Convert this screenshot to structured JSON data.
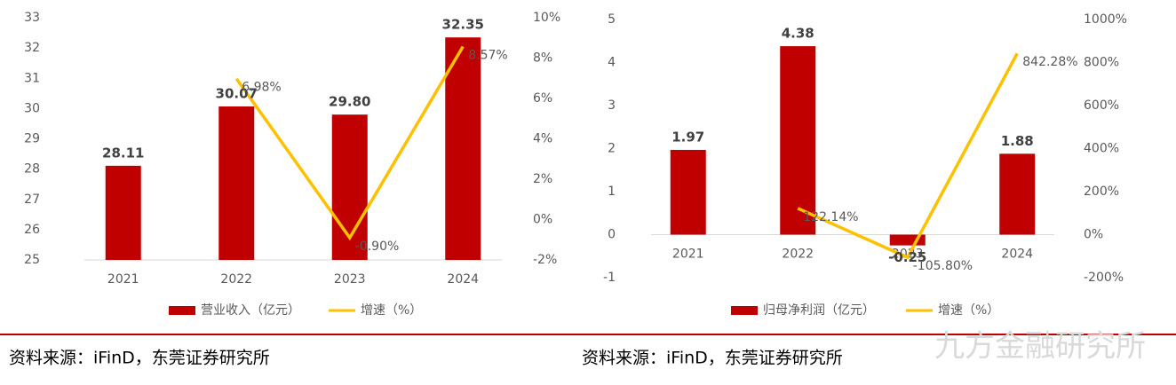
{
  "chart_data": [
    {
      "type": "bar_line",
      "categories": [
        "2021",
        "2022",
        "2023",
        "2024"
      ],
      "series": [
        {
          "name": "营业收入（亿元）",
          "color": "#c00000",
          "values": [
            28.11,
            30.07,
            29.8,
            32.35
          ],
          "value_labels": [
            "28.11",
            "30.07",
            "29.80",
            "32.35"
          ]
        },
        {
          "name": "增速（%）",
          "color": "#ffc000",
          "axis": "y2",
          "values": [
            null,
            6.98,
            -0.9,
            8.57
          ],
          "value_labels": [
            null,
            "6.98%",
            "-0.90%",
            "8.57%"
          ]
        }
      ],
      "ylim": [
        25,
        33
      ],
      "yticks": [
        25,
        26,
        27,
        28,
        29,
        30,
        31,
        32,
        33
      ],
      "y2lim": [
        -2,
        10
      ],
      "y2ticks": [
        {
          "value": -2,
          "label": "-2%"
        },
        {
          "value": 0,
          "label": "0%"
        },
        {
          "value": 2,
          "label": "2%"
        },
        {
          "value": 4,
          "label": "4%"
        },
        {
          "value": 6,
          "label": "6%"
        },
        {
          "value": 8,
          "label": "8%"
        },
        {
          "value": 10,
          "label": "10%"
        }
      ]
    },
    {
      "type": "bar_line",
      "categories": [
        "2021",
        "2022",
        "2023",
        "2024"
      ],
      "series": [
        {
          "name": "归母净利润（亿元）",
          "color": "#c00000",
          "values": [
            1.97,
            4.38,
            -0.25,
            1.88
          ],
          "value_labels": [
            "1.97",
            "4.38",
            "-0.25",
            "1.88"
          ]
        },
        {
          "name": "增速（%）",
          "color": "#ffc000",
          "axis": "y2",
          "values": [
            null,
            122.14,
            -105.8,
            842.28
          ],
          "value_labels": [
            null,
            "122.14%",
            "-105.80%",
            "842.28%"
          ]
        }
      ],
      "ylim": [
        -1,
        5
      ],
      "yticks": [
        -1,
        0,
        1,
        2,
        3,
        4,
        5
      ],
      "y2lim": [
        -200,
        1000
      ],
      "y2ticks": [
        {
          "value": -200,
          "label": "-200%"
        },
        {
          "value": 0,
          "label": "0%"
        },
        {
          "value": 200,
          "label": "200%"
        },
        {
          "value": 400,
          "label": "400%"
        },
        {
          "value": 600,
          "label": "600%"
        },
        {
          "value": 800,
          "label": "800%"
        },
        {
          "value": 1000,
          "label": "1000%"
        }
      ]
    }
  ],
  "sources": [
    "资料来源：iFinD，东莞证券研究所",
    "资料来源：iFinD，东莞证券研究所"
  ],
  "watermark": "九方金融研究所"
}
